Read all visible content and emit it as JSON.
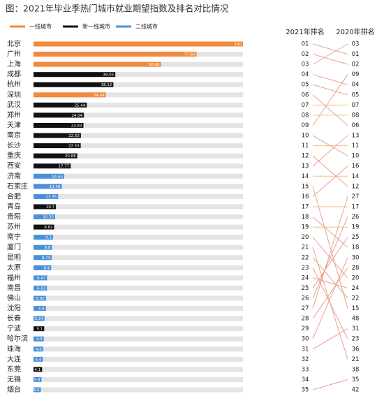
{
  "chart_data": {
    "type": "bar",
    "orientation": "horizontal",
    "title": "图：2021年毕业季热门城市就业期望指数及排名对比情况",
    "categories": [
      "北京",
      "广州",
      "上海",
      "成都",
      "杭州",
      "深圳",
      "武汉",
      "郑州",
      "天津",
      "南京",
      "长沙",
      "重庆",
      "西安",
      "济南",
      "石家庄",
      "合肥",
      "青岛",
      "贵阳",
      "苏州",
      "南宁",
      "厦门",
      "昆明",
      "太原",
      "福州",
      "南昌",
      "佛山",
      "沈阳",
      "长春",
      "宁波",
      "哈尔滨",
      "珠海",
      "大连",
      "东莞",
      "无锡",
      "烟台"
    ],
    "series": [
      {
        "name": "一线城市",
        "color": "#f08a3c",
        "values": [
          100,
          77.83,
          60.88,
          null,
          null,
          34.49,
          null,
          null,
          null,
          null,
          null,
          null,
          null,
          null,
          null,
          null,
          null,
          null,
          null,
          null,
          null,
          null,
          null,
          null,
          null,
          null,
          null,
          null,
          null,
          null,
          null,
          null,
          null,
          null,
          null
        ]
      },
      {
        "name": "新一线城市",
        "color": "#111111",
        "values": [
          null,
          null,
          null,
          39.05,
          38.12,
          null,
          25.44,
          24.04,
          23.83,
          22.63,
          22.53,
          20.88,
          17.77,
          null,
          null,
          null,
          10.7,
          null,
          9.82,
          null,
          null,
          null,
          null,
          null,
          null,
          null,
          null,
          null,
          5.1,
          null,
          null,
          null,
          4.1,
          null,
          null
        ]
      },
      {
        "name": "二线城市",
        "color": "#4a90d9",
        "values": [
          null,
          null,
          null,
          null,
          null,
          null,
          null,
          null,
          null,
          null,
          null,
          null,
          null,
          14.63,
          13.48,
          11.75,
          null,
          10.33,
          null,
          9.3,
          8.8,
          8.73,
          8.4,
          6.47,
          6.43,
          5.92,
          5.9,
          5.24,
          null,
          4.9,
          4.6,
          4.4,
          null,
          3.8,
          3.5
        ]
      }
    ],
    "xlim": [
      0,
      100
    ],
    "background_bar_color": "#e4e4e4",
    "rank_2021_label": "2021年排名",
    "rank_2020_label": "2020年排名",
    "rank_2021": [
      "01",
      "02",
      "03",
      "04",
      "05",
      "06",
      "07",
      "08",
      "09",
      "10",
      "11",
      "12",
      "13",
      "14",
      "15",
      "16",
      "17",
      "18",
      "19",
      "20",
      "21",
      "22",
      "23",
      "24",
      "25",
      "26",
      "27",
      "28",
      "29",
      "30",
      "31",
      "32",
      "33",
      "34",
      "35"
    ],
    "rank_2020": [
      "03",
      "01",
      "02",
      "09",
      "04",
      "05",
      "07",
      "08",
      "06",
      "13",
      "11",
      "10",
      "16",
      "14",
      "12",
      "27",
      "17",
      "26",
      "19",
      "25",
      "18",
      "30",
      "28",
      "20",
      "24",
      "22",
      "15",
      "48",
      "31",
      "23",
      "36",
      "21",
      "38",
      "35",
      "42"
    ],
    "link_color": "#e9a090",
    "same_rank_color": "#f5c07a"
  }
}
